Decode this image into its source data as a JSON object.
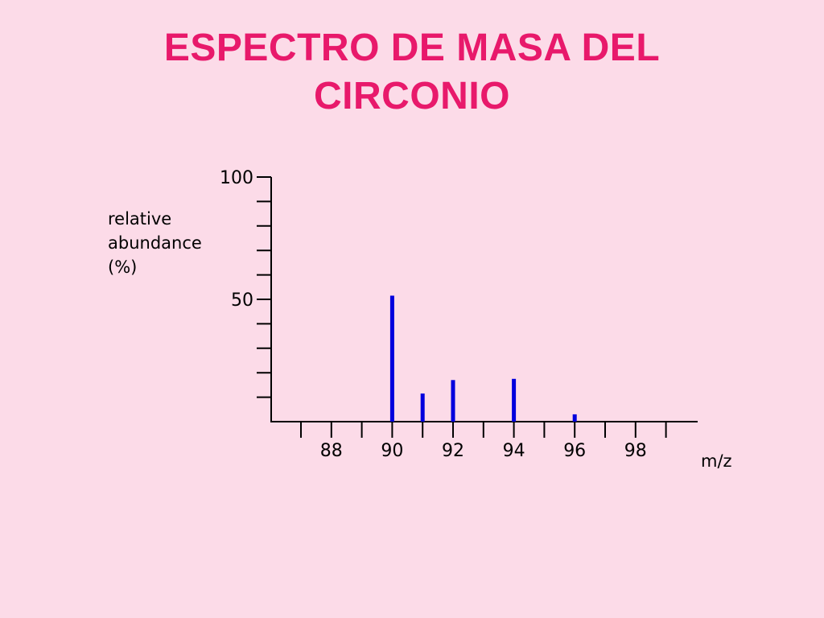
{
  "slide": {
    "title_line1": "ESPECTRO DE MASA DEL",
    "title_line2": "CIRCONIO",
    "title_color": "#e8196b"
  },
  "chart_data": {
    "type": "bar",
    "x": [
      90,
      91,
      92,
      94,
      96
    ],
    "values": [
      51.5,
      11.5,
      17,
      17.5,
      3
    ],
    "xlabel": "m/z",
    "ylabel_lines": [
      "relative",
      "abundance",
      "(%)"
    ],
    "xticks": [
      "88",
      "90",
      "92",
      "94",
      "96",
      "98"
    ],
    "yticks": [
      "50",
      "100"
    ],
    "xlim": [
      86,
      100
    ],
    "ylim": [
      0,
      100
    ],
    "bar_color": "#0000dd",
    "axis_color": "#000000"
  }
}
